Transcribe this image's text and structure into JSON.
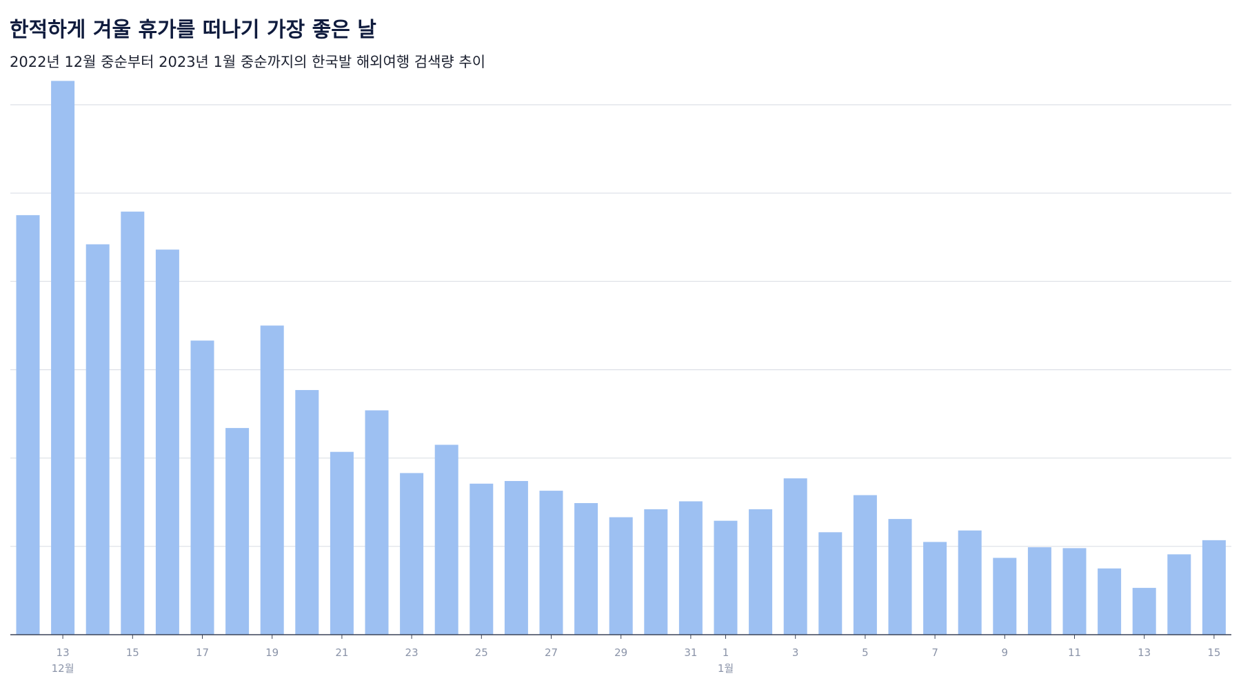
{
  "chart_data": {
    "type": "bar",
    "title": "한적하게 겨울 휴가를 떠나기 가장 좋은 날",
    "subtitle": "2022년 12월 중순부터 2023년 1월 중순까지의 한국발 해외여행 검색량 추이",
    "xlabel": "",
    "ylabel": "",
    "categories": [
      "2022-12-12",
      "2022-12-13",
      "2022-12-14",
      "2022-12-15",
      "2022-12-16",
      "2022-12-17",
      "2022-12-18",
      "2022-12-19",
      "2022-12-20",
      "2022-12-21",
      "2022-12-22",
      "2022-12-23",
      "2022-12-24",
      "2022-12-25",
      "2022-12-26",
      "2022-12-27",
      "2022-12-28",
      "2022-12-29",
      "2022-12-30",
      "2022-12-31",
      "2023-01-01",
      "2023-01-02",
      "2023-01-03",
      "2023-01-04",
      "2023-01-05",
      "2023-01-06",
      "2023-01-07",
      "2023-01-08",
      "2023-01-09",
      "2023-01-10",
      "2023-01-11",
      "2023-01-12",
      "2023-01-13",
      "2023-01-14",
      "2023-01-15"
    ],
    "values": [
      4.75,
      6.27,
      4.42,
      4.79,
      4.36,
      3.33,
      2.34,
      3.5,
      2.77,
      2.07,
      2.54,
      1.83,
      2.15,
      1.71,
      1.74,
      1.63,
      1.49,
      1.33,
      1.42,
      1.51,
      1.29,
      1.42,
      1.77,
      1.16,
      1.58,
      1.31,
      1.05,
      1.18,
      0.87,
      0.99,
      0.98,
      0.75,
      0.53,
      0.91,
      1.07
    ],
    "ylim": [
      0,
      6.0
    ],
    "y_gridlines": [
      1,
      2,
      3,
      4,
      5,
      6
    ],
    "y_tick_labels_shown": false,
    "x_tick_labels": [
      {
        "index": 1,
        "label": "13"
      },
      {
        "index": 3,
        "label": "15"
      },
      {
        "index": 5,
        "label": "17"
      },
      {
        "index": 7,
        "label": "19"
      },
      {
        "index": 9,
        "label": "21"
      },
      {
        "index": 11,
        "label": "23"
      },
      {
        "index": 13,
        "label": "25"
      },
      {
        "index": 15,
        "label": "27"
      },
      {
        "index": 17,
        "label": "29"
      },
      {
        "index": 19,
        "label": "31"
      },
      {
        "index": 20,
        "label": "1"
      },
      {
        "index": 22,
        "label": "3"
      },
      {
        "index": 24,
        "label": "5"
      },
      {
        "index": 26,
        "label": "7"
      },
      {
        "index": 28,
        "label": "9"
      },
      {
        "index": 30,
        "label": "11"
      },
      {
        "index": 32,
        "label": "13"
      },
      {
        "index": 34,
        "label": "15"
      }
    ],
    "month_labels": [
      {
        "index": 1,
        "label": "12월"
      },
      {
        "index": 20,
        "label": "1월"
      }
    ],
    "grid": true,
    "legend": "none",
    "bar_color": "#9dc0f2",
    "grid_color": "#dcdfe6",
    "axis_color": "#3a4257"
  }
}
